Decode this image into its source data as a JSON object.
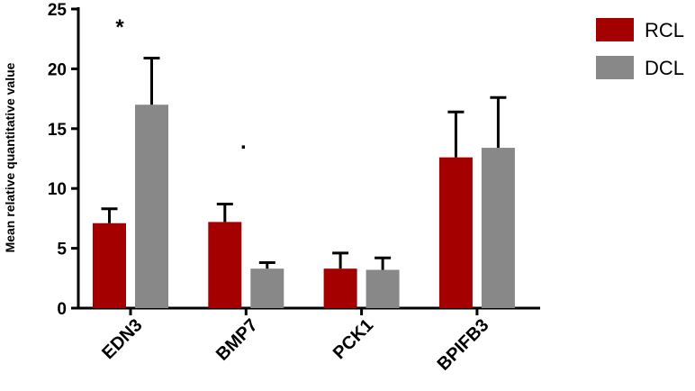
{
  "chart_data": {
    "type": "bar",
    "title": "",
    "xlabel": "",
    "ylabel": "Mean relative  quantitative value",
    "ylim": [
      0,
      25
    ],
    "yticks": [
      0,
      5,
      10,
      15,
      20,
      25
    ],
    "categories": [
      "EDN3",
      "BMP7",
      "PCK1",
      "BPIFB3"
    ],
    "series": [
      {
        "name": "RCL",
        "color": "#a50000",
        "values": [
          7.1,
          7.2,
          3.3,
          12.6
        ],
        "errors": [
          1.2,
          1.5,
          1.3,
          3.8
        ]
      },
      {
        "name": "DCL",
        "color": "#888888",
        "values": [
          17.0,
          3.3,
          3.2,
          13.4
        ],
        "errors": [
          3.9,
          0.5,
          1.0,
          4.2
        ]
      }
    ],
    "annotations": [
      {
        "text": "*",
        "category": "EDN3"
      },
      {
        "text": ".",
        "category": "BMP7"
      }
    ],
    "grid": false,
    "legend_position": "top-right"
  }
}
